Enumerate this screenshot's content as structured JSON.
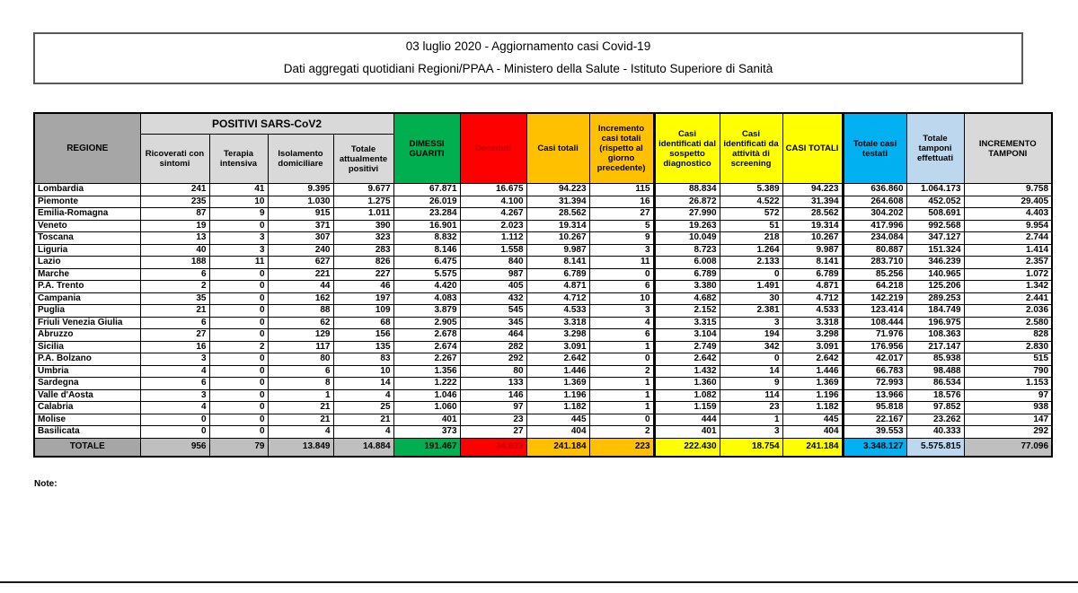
{
  "title": {
    "line1": "03 luglio 2020 - Aggiornamento casi Covid-19",
    "line2": "Dati aggregati quotidiani Regioni/PPAA - Ministero della Salute - Istituto Superiore di Sanità"
  },
  "note_label": "Note:",
  "colors": {
    "dimessi_guariti": "#00b050",
    "deceduti_bg": "#ff0000",
    "deceduti_text": "#c00000",
    "casi_totali": "#ffc000",
    "casi_identificati": "#ffff00",
    "totale_casi_testati": "#00b0f0",
    "totale_tamponi": "#bdd7ee",
    "header_gray": "#d9d9d9",
    "regione_gray": "#a6a6a6",
    "totale_row_gray": "#bfbfbf"
  },
  "table": {
    "region_header": "REGIONE",
    "group_header": "POSITIVI SARS-CoV2",
    "sub_headers": [
      "Ricoverati con sintomi",
      "Terapia intensiva",
      "Isolamento domiciliare",
      "Totale attualmente positivi"
    ],
    "col_headers": [
      "DIMESSI GUARITI",
      "Deceduti",
      "Casi totali",
      "Incremento casi totali (rispetto al giorno precedente)",
      "Casi identificati dal sospetto diagnostico",
      "Casi identificati da attività di screening",
      "CASI TOTALI",
      "Totale casi testati",
      "Totale tamponi effettuati",
      "INCREMENTO TAMPONI"
    ],
    "rows": [
      {
        "region": "Lombardia",
        "values": [
          "241",
          "41",
          "9.395",
          "9.677",
          "67.871",
          "16.675",
          "94.223",
          "115",
          "88.834",
          "5.389",
          "94.223",
          "636.860",
          "1.064.173",
          "9.758"
        ]
      },
      {
        "region": "Piemonte",
        "values": [
          "235",
          "10",
          "1.030",
          "1.275",
          "26.019",
          "4.100",
          "31.394",
          "16",
          "26.872",
          "4.522",
          "31.394",
          "264.608",
          "452.052",
          "29.405"
        ]
      },
      {
        "region": "Emilia-Romagna",
        "values": [
          "87",
          "9",
          "915",
          "1.011",
          "23.284",
          "4.267",
          "28.562",
          "27",
          "27.990",
          "572",
          "28.562",
          "304.202",
          "508.691",
          "4.403"
        ]
      },
      {
        "region": "Veneto",
        "values": [
          "19",
          "0",
          "371",
          "390",
          "16.901",
          "2.023",
          "19.314",
          "5",
          "19.263",
          "51",
          "19.314",
          "417.996",
          "992.568",
          "9.954"
        ]
      },
      {
        "region": "Toscana",
        "values": [
          "13",
          "3",
          "307",
          "323",
          "8.832",
          "1.112",
          "10.267",
          "9",
          "10.049",
          "218",
          "10.267",
          "234.084",
          "347.127",
          "2.744"
        ]
      },
      {
        "region": "Liguria",
        "values": [
          "40",
          "3",
          "240",
          "283",
          "8.146",
          "1.558",
          "9.987",
          "3",
          "8.723",
          "1.264",
          "9.987",
          "80.887",
          "151.324",
          "1.414"
        ]
      },
      {
        "region": "Lazio",
        "values": [
          "188",
          "11",
          "627",
          "826",
          "6.475",
          "840",
          "8.141",
          "11",
          "6.008",
          "2.133",
          "8.141",
          "283.710",
          "346.239",
          "2.357"
        ]
      },
      {
        "region": "Marche",
        "values": [
          "6",
          "0",
          "221",
          "227",
          "5.575",
          "987",
          "6.789",
          "0",
          "6.789",
          "0",
          "6.789",
          "85.256",
          "140.965",
          "1.072"
        ]
      },
      {
        "region": "P.A. Trento",
        "values": [
          "2",
          "0",
          "44",
          "46",
          "4.420",
          "405",
          "4.871",
          "6",
          "3.380",
          "1.491",
          "4.871",
          "64.218",
          "125.206",
          "1.342"
        ]
      },
      {
        "region": "Campania",
        "values": [
          "35",
          "0",
          "162",
          "197",
          "4.083",
          "432",
          "4.712",
          "10",
          "4.682",
          "30",
          "4.712",
          "142.219",
          "289.253",
          "2.441"
        ]
      },
      {
        "region": "Puglia",
        "values": [
          "21",
          "0",
          "88",
          "109",
          "3.879",
          "545",
          "4.533",
          "3",
          "2.152",
          "2.381",
          "4.533",
          "123.414",
          "184.749",
          "2.036"
        ]
      },
      {
        "region": "Friuli Venezia Giulia",
        "values": [
          "6",
          "0",
          "62",
          "68",
          "2.905",
          "345",
          "3.318",
          "4",
          "3.315",
          "3",
          "3.318",
          "108.444",
          "196.975",
          "2.580"
        ]
      },
      {
        "region": "Abruzzo",
        "values": [
          "27",
          "0",
          "129",
          "156",
          "2.678",
          "464",
          "3.298",
          "6",
          "3.104",
          "194",
          "3.298",
          "71.976",
          "108.363",
          "828"
        ]
      },
      {
        "region": "Sicilia",
        "values": [
          "16",
          "2",
          "117",
          "135",
          "2.674",
          "282",
          "3.091",
          "1",
          "2.749",
          "342",
          "3.091",
          "176.956",
          "217.147",
          "2.830"
        ]
      },
      {
        "region": "P.A. Bolzano",
        "values": [
          "3",
          "0",
          "80",
          "83",
          "2.267",
          "292",
          "2.642",
          "0",
          "2.642",
          "0",
          "2.642",
          "42.017",
          "85.938",
          "515"
        ]
      },
      {
        "region": "Umbria",
        "values": [
          "4",
          "0",
          "6",
          "10",
          "1.356",
          "80",
          "1.446",
          "2",
          "1.432",
          "14",
          "1.446",
          "66.783",
          "98.488",
          "790"
        ]
      },
      {
        "region": "Sardegna",
        "values": [
          "6",
          "0",
          "8",
          "14",
          "1.222",
          "133",
          "1.369",
          "1",
          "1.360",
          "9",
          "1.369",
          "72.993",
          "86.534",
          "1.153"
        ]
      },
      {
        "region": "Valle d'Aosta",
        "values": [
          "3",
          "0",
          "1",
          "4",
          "1.046",
          "146",
          "1.196",
          "1",
          "1.082",
          "114",
          "1.196",
          "13.966",
          "18.576",
          "97"
        ]
      },
      {
        "region": "Calabria",
        "values": [
          "4",
          "0",
          "21",
          "25",
          "1.060",
          "97",
          "1.182",
          "1",
          "1.159",
          "23",
          "1.182",
          "95.818",
          "97.852",
          "938"
        ]
      },
      {
        "region": "Molise",
        "values": [
          "0",
          "0",
          "21",
          "21",
          "401",
          "23",
          "445",
          "0",
          "444",
          "1",
          "445",
          "22.167",
          "23.262",
          "147"
        ]
      },
      {
        "region": "Basilicata",
        "values": [
          "0",
          "0",
          "4",
          "4",
          "373",
          "27",
          "404",
          "2",
          "401",
          "3",
          "404",
          "39.553",
          "40.333",
          "292"
        ]
      }
    ],
    "total_row": {
      "label": "TOTALE",
      "values": [
        "956",
        "79",
        "13.849",
        "14.884",
        "191.467",
        "34.833",
        "241.184",
        "223",
        "222.430",
        "18.754",
        "241.184",
        "3.348.127",
        "5.575.815",
        "77.096"
      ]
    }
  }
}
